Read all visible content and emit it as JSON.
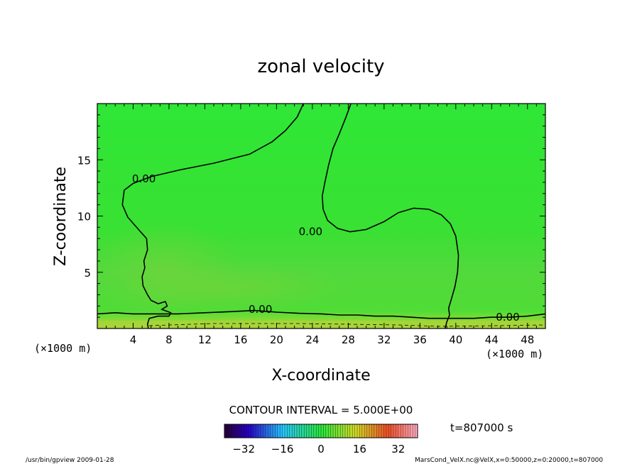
{
  "chart_data": {
    "type": "contour",
    "title": "zonal velocity",
    "xlabel": "X-coordinate",
    "ylabel": "Z-coordinate",
    "x_unit": "(×1000 m)",
    "y_unit": "(×1000 m)",
    "xlim": [
      0,
      50
    ],
    "ylim": [
      0,
      20
    ],
    "x_ticks": [
      4,
      8,
      12,
      16,
      20,
      24,
      28,
      32,
      36,
      40,
      44,
      48
    ],
    "y_ticks": [
      5,
      10,
      15
    ],
    "contour_interval_text": "CONTOUR INTERVAL = 5.000E+00",
    "contour_labels": [
      {
        "text": "0.00",
        "x": 5.2,
        "z": 13.3
      },
      {
        "text": "0.00",
        "x": 23.8,
        "z": 8.6
      },
      {
        "text": "0.00",
        "x": 18.2,
        "z": 1.7
      },
      {
        "text": "0.00",
        "x": 45.8,
        "z": 1.0
      }
    ],
    "zero_contours": [
      {
        "name": "upper-left",
        "points": [
          [
            23.0,
            20.0
          ],
          [
            22.3,
            18.8
          ],
          [
            21.0,
            17.6
          ],
          [
            19.5,
            16.6
          ],
          [
            17.0,
            15.5
          ],
          [
            13.0,
            14.7
          ],
          [
            9.2,
            14.1
          ],
          [
            6.0,
            13.5
          ],
          [
            4.0,
            12.9
          ],
          [
            3.0,
            12.3
          ],
          [
            2.8,
            11.0
          ],
          [
            3.4,
            9.9
          ],
          [
            4.6,
            8.8
          ],
          [
            5.5,
            8.0
          ],
          [
            5.6,
            7.0
          ],
          [
            5.2,
            6.0
          ],
          [
            5.3,
            5.4
          ],
          [
            5.0,
            4.6
          ],
          [
            5.1,
            3.8
          ],
          [
            5.6,
            3.0
          ],
          [
            6.0,
            2.5
          ],
          [
            6.8,
            2.2
          ],
          [
            7.6,
            2.4
          ],
          [
            7.8,
            2.0
          ],
          [
            7.2,
            1.7
          ],
          [
            8.2,
            1.4
          ],
          [
            8.0,
            1.1
          ],
          [
            6.8,
            1.1
          ],
          [
            5.8,
            0.9
          ],
          [
            5.6,
            0.4
          ],
          [
            5.7,
            0.0
          ]
        ]
      },
      {
        "name": "upper-right",
        "points": [
          [
            28.3,
            20.0
          ],
          [
            27.7,
            18.7
          ],
          [
            27.0,
            17.3
          ],
          [
            26.3,
            16.0
          ],
          [
            25.8,
            14.5
          ],
          [
            25.4,
            13.0
          ],
          [
            25.1,
            11.8
          ],
          [
            25.2,
            10.6
          ],
          [
            25.7,
            9.6
          ],
          [
            26.8,
            8.9
          ],
          [
            28.2,
            8.6
          ],
          [
            30.0,
            8.8
          ],
          [
            32.0,
            9.5
          ],
          [
            33.6,
            10.3
          ],
          [
            35.3,
            10.7
          ],
          [
            37.0,
            10.6
          ],
          [
            38.4,
            10.1
          ],
          [
            39.4,
            9.3
          ],
          [
            40.0,
            8.2
          ],
          [
            40.3,
            6.5
          ],
          [
            40.2,
            5.0
          ],
          [
            39.9,
            3.7
          ],
          [
            39.5,
            2.6
          ],
          [
            39.2,
            1.8
          ],
          [
            39.3,
            1.2
          ],
          [
            39.0,
            0.6
          ],
          [
            38.8,
            0.0
          ]
        ]
      },
      {
        "name": "bottom",
        "points": [
          [
            0.0,
            1.3
          ],
          [
            2.0,
            1.4
          ],
          [
            4.0,
            1.3
          ],
          [
            6.0,
            1.3
          ],
          [
            9.0,
            1.3
          ],
          [
            12.0,
            1.4
          ],
          [
            15.0,
            1.5
          ],
          [
            17.5,
            1.6
          ],
          [
            20.0,
            1.45
          ],
          [
            22.5,
            1.35
          ],
          [
            25.0,
            1.3
          ],
          [
            27.0,
            1.2
          ],
          [
            29.0,
            1.2
          ],
          [
            31.0,
            1.1
          ],
          [
            33.0,
            1.1
          ],
          [
            35.0,
            1.0
          ],
          [
            37.0,
            0.9
          ],
          [
            39.5,
            0.9
          ],
          [
            42.0,
            0.9
          ],
          [
            44.0,
            1.0
          ],
          [
            46.0,
            1.0
          ],
          [
            48.0,
            1.1
          ],
          [
            50.0,
            1.3
          ]
        ]
      }
    ],
    "colorbar": {
      "ticks": [
        -32,
        -16,
        0,
        16,
        32
      ],
      "vmin": -40,
      "vmax": 40
    },
    "time_label": "t=807000 s"
  },
  "footer": {
    "left": "/usr/bin/gpview  2009-01-28",
    "right": "MarsCond_VelX.nc@VelX,x=0:50000,z=0:20000,t=807000"
  },
  "colors": {
    "field_main": "#33e633",
    "field_light": "#5cd94a",
    "field_bottom": "#9acd32",
    "field_surface": "#d6e23a",
    "contour": "#000000"
  }
}
